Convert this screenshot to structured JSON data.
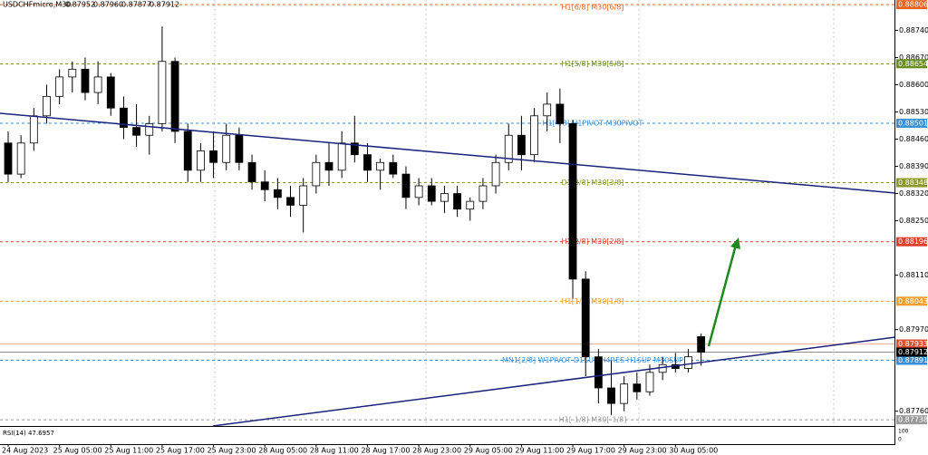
{
  "chart_data": {
    "type": "candlestick",
    "header": {
      "symbol": "USDCHFmicro,M30",
      "ohlc": [
        "0.87952",
        "0.87960",
        "0.87877",
        "0.87912"
      ]
    },
    "categories": [
      "24 Aug 2023",
      null,
      null,
      null,
      "25 Aug 05:00",
      null,
      null,
      null,
      "25 Aug 11:00",
      null,
      null,
      null,
      "25 Aug 17:00",
      null,
      null,
      null,
      "25 Aug 23:00",
      null,
      null,
      null,
      "28 Aug 05:00",
      null,
      null,
      null,
      "28 Aug 11:00",
      null,
      null,
      null,
      "28 Aug 17:00",
      null,
      null,
      null,
      "28 Aug 23:00",
      null,
      null,
      null,
      "29 Aug 05:00",
      null,
      null,
      null,
      "29 Aug 11:00",
      null,
      null,
      null,
      "29 Aug 17:00",
      null,
      null,
      null,
      "29 Aug 23:00",
      null,
      null,
      null,
      "30 Aug 05:00",
      null,
      null
    ],
    "open": [
      0.8845,
      0.8837,
      0.8845,
      0.8852,
      0.8857,
      0.8862,
      0.8864,
      0.8858,
      0.8862,
      0.8854,
      0.8849,
      0.8847,
      0.885,
      0.8866,
      0.8848,
      0.8838,
      0.8843,
      0.884,
      0.8847,
      0.884,
      0.8835,
      0.8833,
      0.8831,
      0.8829,
      0.8834,
      0.884,
      0.8838,
      0.8845,
      0.8842,
      0.8838,
      0.884,
      0.8837,
      0.8831,
      0.8834,
      0.883,
      0.8832,
      0.8828,
      0.883,
      0.8834,
      0.884,
      0.8847,
      0.8842,
      0.8852,
      0.8855,
      0.885,
      0.881,
      0.879,
      0.8782,
      0.8778,
      0.8783,
      0.8781,
      0.8786,
      0.8788,
      0.8787,
      0.87952
    ],
    "high": [
      0.8848,
      0.8847,
      0.8854,
      0.886,
      0.8864,
      0.8866,
      0.8867,
      0.8866,
      0.8863,
      0.8857,
      0.8855,
      0.8852,
      0.8875,
      0.8867,
      0.885,
      0.8845,
      0.8848,
      0.885,
      0.8849,
      0.8842,
      0.8838,
      0.8836,
      0.8834,
      0.8836,
      0.8842,
      0.8845,
      0.8848,
      0.8852,
      0.8845,
      0.8841,
      0.8842,
      0.8839,
      0.8836,
      0.8836,
      0.8834,
      0.8834,
      0.8831,
      0.8836,
      0.8842,
      0.885,
      0.8852,
      0.8854,
      0.8858,
      0.8859,
      0.8851,
      0.8812,
      0.8792,
      0.8789,
      0.8785,
      0.8786,
      0.8788,
      0.879,
      0.8791,
      0.8792,
      0.8796
    ],
    "low": [
      0.8835,
      0.8836,
      0.8843,
      0.885,
      0.8855,
      0.8858,
      0.8856,
      0.8855,
      0.8852,
      0.8846,
      0.8844,
      0.8842,
      0.8848,
      0.8845,
      0.8835,
      0.8835,
      0.8836,
      0.8838,
      0.8838,
      0.8833,
      0.883,
      0.8828,
      0.8826,
      0.8822,
      0.8832,
      0.8834,
      0.8836,
      0.884,
      0.8835,
      0.8833,
      0.8836,
      0.8828,
      0.8829,
      0.8829,
      0.8827,
      0.8826,
      0.8825,
      0.8828,
      0.8832,
      0.8838,
      0.8838,
      0.884,
      0.8848,
      0.8845,
      0.8805,
      0.8785,
      0.8778,
      0.8775,
      0.8776,
      0.8779,
      0.878,
      0.8784,
      0.8786,
      0.8786,
      0.87877
    ],
    "close": [
      0.8837,
      0.8845,
      0.8852,
      0.8857,
      0.8862,
      0.8864,
      0.8858,
      0.8862,
      0.8854,
      0.8849,
      0.8847,
      0.885,
      0.8866,
      0.8848,
      0.8838,
      0.8843,
      0.884,
      0.8847,
      0.884,
      0.8835,
      0.8833,
      0.8831,
      0.8829,
      0.8834,
      0.884,
      0.8838,
      0.8845,
      0.8842,
      0.8838,
      0.884,
      0.8837,
      0.8831,
      0.8834,
      0.883,
      0.8832,
      0.8828,
      0.883,
      0.8834,
      0.884,
      0.8847,
      0.8842,
      0.8852,
      0.8855,
      0.885,
      0.881,
      0.879,
      0.8782,
      0.8778,
      0.8783,
      0.8781,
      0.8786,
      0.8788,
      0.8787,
      0.879,
      0.87912
    ],
    "up_color": "#ffffff",
    "down_color": "#000000",
    "ylim": [
      0.87722,
      0.88818
    ],
    "yticks": [
      {
        "value": 0.8874,
        "label": "0.88740"
      },
      {
        "value": 0.8867,
        "label": "0.88670"
      },
      {
        "value": 0.886,
        "label": "0.88600"
      },
      {
        "value": 0.8853,
        "label": "0.88530"
      },
      {
        "value": 0.8846,
        "label": "0.88460"
      },
      {
        "value": 0.8839,
        "label": "0.88390"
      },
      {
        "value": 0.8832,
        "label": "0.88320"
      },
      {
        "value": 0.8825,
        "label": "0.88250"
      },
      {
        "value": 0.8811,
        "label": "0.88110"
      },
      {
        "value": 0.8797,
        "label": "0.87970"
      },
      {
        "value": 0.8776,
        "label": "0.87760"
      }
    ],
    "levels": [
      {
        "label": "H1[6/8] M30[6/8]",
        "value": 0.88806,
        "color": "#e8641e"
      },
      {
        "label": "H1[5/8] M30[5/8]",
        "value": 0.88654,
        "color": "#6b8e23"
      },
      {
        "label": "H1[4/8] H1PIVOT M30PIVOT",
        "value": 0.88501,
        "color": "#3a8fd8"
      },
      {
        "label": "D1[3/8] M30[3/8]",
        "value": 0.88348,
        "color": "#8a9a2a"
      },
      {
        "label": "H1[2/8] M30[2/8]",
        "value": 0.88196,
        "color": "#e0402a"
      },
      {
        "label": "H1[1/8] M30[1/8]",
        "value": 0.88043,
        "color": "#f0a030"
      },
      {
        "label": "MN1[2/8] W1PIVOT D1SUP H4RES H1SUP M30SUP",
        "value": 0.87891,
        "color": "#3a8fd8"
      },
      {
        "label": "H1[-1/8] M30[-1/8]",
        "value": 0.87738,
        "color": "#9a9a9a"
      }
    ],
    "price_lines": [
      {
        "value": 0.87933,
        "color": "#e0502a"
      },
      {
        "value": 0.87912,
        "color": "#000000"
      }
    ],
    "rsi": {
      "label": "RSI(14) 47.6957",
      "yticks": [
        100,
        0
      ]
    }
  }
}
